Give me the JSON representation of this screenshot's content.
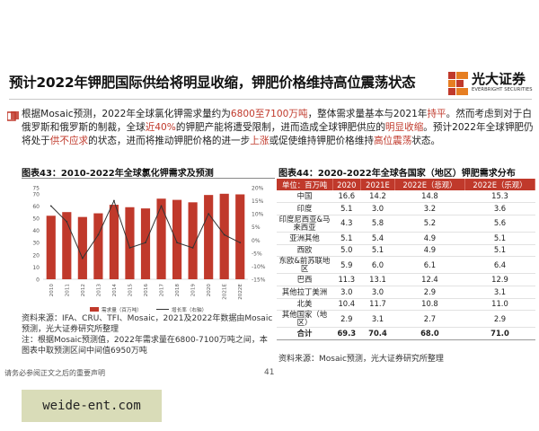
{
  "title": "预计2022年钾肥国际供给将明显收缩，钾肥价格维持高位震荡状态",
  "brand": {
    "cn": "光大证券",
    "en": "EVERBRIGHT SECURITIES"
  },
  "summary": {
    "p1": "根据Mosaic预测，2022年全球氯化钾需求量约为",
    "h1": "6800至7100万吨",
    "p2": "，整体需求量基本与2021年",
    "h2": "持平",
    "p3": "。然而考虑到对于白俄罗斯和俄罗斯的制裁，全球",
    "h3": "近40%",
    "p4": "的钾肥产能将遭受限制，进而造成全球钾肥供应的",
    "h4": "明显收缩",
    "p5": "。预计2022年全球钾肥仍将处于",
    "h5": "供不应求",
    "p6": "的状态，进而将推动钾肥价格的进一步",
    "h6": "上涨",
    "p7": "或促使维持钾肥价格维持",
    "h7": "高位震荡",
    "p8": "状态。"
  },
  "fig43": {
    "title": "图表43：2010-2022年全球氯化钾需求及预测",
    "notes": [
      "资料来源：IFA、CRU、TFI、Mosaic，2021及2022年数据由Mosaic预测，光大证券研究所整理",
      "注：根据Mosaic预测值，2022年需求量在6800-7100万吨之间，本图表中取预测区间中间值6950万吨"
    ]
  },
  "fig44": {
    "title": "图表44：2020-2022年全球各国家（地区）钾肥需求分布",
    "headers": [
      "单位：百万吨",
      "2020",
      "2021E",
      "2022E（悲观）",
      "2022E（乐观）"
    ],
    "rows": [
      [
        "中国",
        "16.6",
        "14.2",
        "14.8",
        "15.3"
      ],
      [
        "印度",
        "5.1",
        "3.0",
        "3.2",
        "3.6"
      ],
      [
        "印度尼西亚&马来西亚",
        "4.3",
        "5.8",
        "5.2",
        "5.6"
      ],
      [
        "亚洲其他",
        "5.1",
        "5.4",
        "4.9",
        "5.1"
      ],
      [
        "西欧",
        "5.0",
        "5.1",
        "4.9",
        "5.1"
      ],
      [
        "东欧&前苏联地区",
        "5.9",
        "6.0",
        "6.1",
        "6.4"
      ],
      [
        "巴西",
        "11.3",
        "13.1",
        "12.4",
        "12.9"
      ],
      [
        "其他拉丁美洲",
        "3.0",
        "3.0",
        "2.9",
        "3.1"
      ],
      [
        "北美",
        "10.4",
        "11.7",
        "10.8",
        "11.0"
      ],
      [
        "其他国家（地区）",
        "2.9",
        "3.1",
        "2.7",
        "2.9"
      ]
    ],
    "total": [
      "合计",
      "69.3",
      "70.4",
      "68.0",
      "71.0"
    ],
    "source": "资料来源：Mosaic预测，光大证券研究所整理"
  },
  "disclaimer": "请务必参阅正文之后的重要声明",
  "page_number": "41",
  "watermark": "weide-ent.com",
  "colors": {
    "accent": "#c0392b",
    "line": "#333333"
  },
  "chart_data": {
    "type": "bar",
    "categories": [
      "2010",
      "2011",
      "2012",
      "2013",
      "2014",
      "2015",
      "2016",
      "2017",
      "2018",
      "2019",
      "2020",
      "2021E",
      "2022E"
    ],
    "series": [
      {
        "name": "需求量（百万吨）",
        "type": "bar",
        "axis": "left",
        "values": [
          52,
          55,
          51,
          54,
          61,
          59,
          58,
          66,
          65,
          63,
          69,
          70,
          69.5
        ]
      },
      {
        "name": "增长率（右轴）",
        "type": "line",
        "axis": "right",
        "values": [
          13,
          7,
          -7,
          2,
          15,
          -3,
          -1,
          13,
          -1,
          -3,
          10,
          2,
          -1
        ]
      }
    ],
    "ylim_left": [
      0,
      75
    ],
    "yticks_left": [
      0,
      10,
      20,
      30,
      40,
      50,
      60,
      70,
      75
    ],
    "ylim_right": [
      -15,
      20
    ],
    "yticks_right": [
      "20%",
      "15%",
      "10%",
      "5%",
      "0%",
      "-5%",
      "-10%",
      "-15%"
    ],
    "legend_position": "bottom",
    "grid": false
  }
}
